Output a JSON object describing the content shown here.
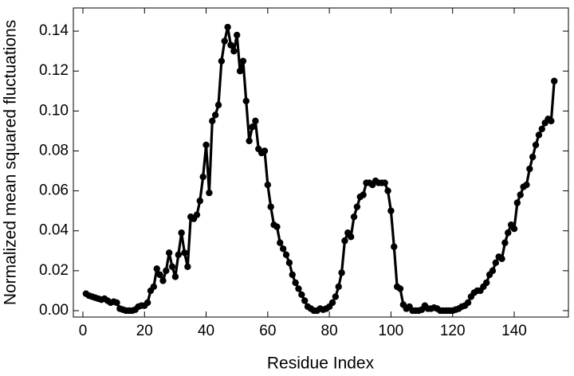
{
  "chart_data": {
    "type": "line",
    "xlabel": "Residue Index",
    "ylabel": "Normalized mean squared fluctuations",
    "xlim": [
      -3.1,
      157.6
    ],
    "ylim": [
      -0.0032,
      0.1516
    ],
    "xticks": [
      0,
      20,
      40,
      60,
      80,
      100,
      120,
      140
    ],
    "yticks": [
      {
        "value": 0,
        "label": "0.00"
      },
      0.02,
      0.04,
      0.06,
      0.08,
      {
        "value": 0.1,
        "label": "0.10"
      },
      0.12,
      0.14
    ],
    "x": [
      1,
      2,
      3,
      4,
      5,
      6,
      7,
      8,
      9,
      10,
      11,
      12,
      13,
      14,
      15,
      16,
      17,
      18,
      19,
      20,
      21,
      22,
      23,
      24,
      25,
      26,
      27,
      28,
      29,
      30,
      31,
      32,
      33,
      34,
      35,
      36,
      37,
      38,
      39,
      40,
      41,
      42,
      43,
      44,
      45,
      46,
      47,
      48,
      49,
      50,
      51,
      52,
      53,
      54,
      55,
      56,
      57,
      58,
      59,
      60,
      61,
      62,
      63,
      64,
      65,
      66,
      67,
      68,
      69,
      70,
      71,
      72,
      73,
      74,
      75,
      76,
      77,
      78,
      79,
      80,
      81,
      82,
      83,
      84,
      85,
      86,
      87,
      88,
      89,
      90,
      91,
      92,
      93,
      94,
      95,
      96,
      97,
      98,
      99,
      100,
      101,
      102,
      103,
      104,
      105,
      106,
      107,
      108,
      109,
      110,
      111,
      112,
      113,
      114,
      115,
      116,
      117,
      118,
      119,
      120,
      121,
      122,
      123,
      124,
      125,
      126,
      127,
      128,
      129,
      130,
      131,
      132,
      133,
      134,
      135,
      136,
      137,
      138,
      139,
      140,
      141,
      142,
      143,
      144,
      145,
      146,
      147,
      148,
      149,
      150,
      151,
      152,
      153
    ],
    "series": [
      {
        "color": "#000000",
        "values": [
          0.0085,
          0.0075,
          0.007,
          0.0065,
          0.006,
          0.0055,
          0.006,
          0.005,
          0.004,
          0.0045,
          0.004,
          0.001,
          0.0005,
          0,
          0,
          0,
          0.0005,
          0.002,
          0.0025,
          0.0025,
          0.004,
          0.01,
          0.012,
          0.021,
          0.018,
          0.015,
          0.02,
          0.029,
          0.022,
          0.017,
          0.028,
          0.039,
          0.029,
          0.022,
          0.047,
          0.046,
          0.048,
          0.055,
          0.067,
          0.083,
          0.059,
          0.095,
          0.098,
          0.103,
          0.125,
          0.135,
          0.142,
          0.133,
          0.13,
          0.138,
          0.12,
          0.125,
          0.105,
          0.085,
          0.092,
          0.095,
          0.081,
          0.079,
          0.08,
          0.063,
          0.052,
          0.043,
          0.042,
          0.034,
          0.031,
          0.028,
          0.024,
          0.018,
          0.014,
          0.011,
          0.008,
          0.005,
          0.002,
          0.001,
          0,
          0,
          0.001,
          0.0005,
          0.001,
          0.002,
          0.004,
          0.007,
          0.012,
          0.019,
          0.035,
          0.039,
          0.037,
          0.047,
          0.052,
          0.057,
          0.058,
          0.064,
          0.064,
          0.063,
          0.065,
          0.064,
          0.064,
          0.064,
          0.06,
          0.05,
          0.032,
          0.012,
          0.011,
          0.003,
          0.001,
          0.002,
          0,
          0,
          0,
          0.0005,
          0.0025,
          0.001,
          0.001,
          0.0015,
          0.001,
          0,
          0,
          0,
          0,
          0,
          0.0005,
          0.001,
          0.002,
          0.0025,
          0.004,
          0.007,
          0.009,
          0.01,
          0.01,
          0.012,
          0.014,
          0.018,
          0.02,
          0.024,
          0.027,
          0.026,
          0.034,
          0.039,
          0.043,
          0.041,
          0.054,
          0.058,
          0.062,
          0.063,
          0.071,
          0.077,
          0.083,
          0.088,
          0.091,
          0.094,
          0.096,
          0.095,
          0.115
        ]
      }
    ]
  }
}
